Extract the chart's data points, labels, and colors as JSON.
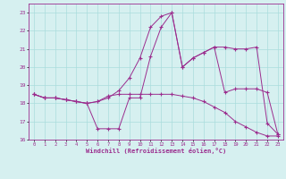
{
  "xlabel": "Windchill (Refroidissement éolien,°C)",
  "x": [
    0,
    1,
    2,
    3,
    4,
    5,
    6,
    7,
    8,
    9,
    10,
    11,
    12,
    13,
    14,
    15,
    16,
    17,
    18,
    19,
    20,
    21,
    22,
    23
  ],
  "line1_y": [
    18.5,
    18.3,
    18.3,
    18.2,
    18.1,
    18.0,
    18.1,
    18.3,
    18.7,
    19.4,
    20.5,
    22.2,
    22.8,
    23.0,
    20.0,
    20.5,
    20.8,
    21.1,
    21.1,
    21.0,
    21.0,
    21.1,
    16.9,
    16.3
  ],
  "line2_y": [
    18.5,
    18.3,
    18.3,
    18.2,
    18.1,
    18.0,
    16.6,
    16.6,
    16.6,
    18.3,
    18.3,
    20.6,
    22.2,
    23.0,
    20.0,
    20.5,
    20.8,
    21.1,
    18.6,
    18.8,
    18.8,
    18.8,
    18.6,
    16.3
  ],
  "line3_y": [
    18.5,
    18.3,
    18.3,
    18.2,
    18.1,
    18.0,
    18.1,
    18.4,
    18.5,
    18.5,
    18.5,
    18.5,
    18.5,
    18.5,
    18.4,
    18.3,
    18.1,
    17.8,
    17.5,
    17.0,
    16.7,
    16.4,
    16.2,
    16.2
  ],
  "line_color": "#9b2d8e",
  "bg_color": "#d6f0f0",
  "grid_color": "#aadddd",
  "ylim": [
    16.0,
    23.5
  ],
  "xlim": [
    -0.5,
    23.5
  ],
  "yticks": [
    16,
    17,
    18,
    19,
    20,
    21,
    22,
    23
  ],
  "xticks": [
    0,
    1,
    2,
    3,
    4,
    5,
    6,
    7,
    8,
    9,
    10,
    11,
    12,
    13,
    14,
    15,
    16,
    17,
    18,
    19,
    20,
    21,
    22,
    23
  ]
}
